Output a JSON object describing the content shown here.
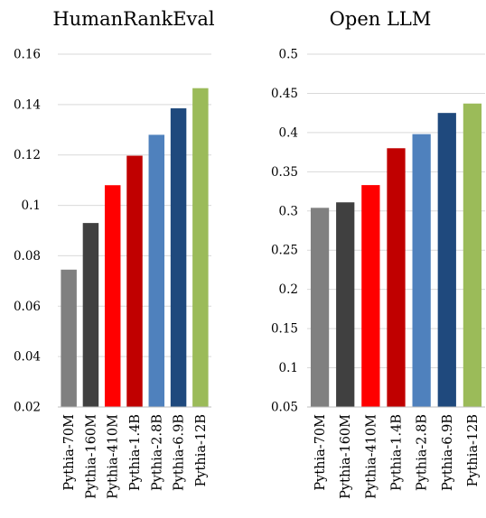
{
  "chart_data": [
    {
      "type": "bar",
      "title": "HumanRankEval",
      "xlabel": "",
      "ylabel": "",
      "ylim": [
        0.02,
        0.16
      ],
      "yticks": [
        "0.02",
        "0.04",
        "0.06",
        "0.08",
        "0.1",
        "0.12",
        "0.14",
        "0.16"
      ],
      "grid": true,
      "categories": [
        "Pythia-70M",
        "Pythia-160M",
        "Pythia-410M",
        "Pythia-1.4B",
        "Pythia-2.8B",
        "Pythia-6.9B",
        "Pythia-12B"
      ],
      "values": [
        0.0745,
        0.093,
        0.108,
        0.1197,
        0.128,
        0.1385,
        0.1465
      ],
      "colors": [
        "#808080",
        "#404040",
        "#ff0000",
        "#c00000",
        "#4f81bd",
        "#1f497d",
        "#9bbb59"
      ]
    },
    {
      "type": "bar",
      "title": "Open LLM",
      "xlabel": "",
      "ylabel": "",
      "ylim": [
        0.05,
        0.5
      ],
      "yticks": [
        "0.05",
        "0.1",
        "0.15",
        "0.2",
        "0.25",
        "0.3",
        "0.35",
        "0.4",
        "0.45",
        "0.5"
      ],
      "grid": true,
      "categories": [
        "Pythia-70M",
        "Pythia-160M",
        "Pythia-410M",
        "Pythia-1.4B",
        "Pythia-2.8B",
        "Pythia-6.9B",
        "Pythia-12B"
      ],
      "values": [
        0.304,
        0.311,
        0.333,
        0.38,
        0.398,
        0.425,
        0.437
      ],
      "colors": [
        "#808080",
        "#404040",
        "#ff0000",
        "#c00000",
        "#4f81bd",
        "#1f497d",
        "#9bbb59"
      ]
    }
  ]
}
